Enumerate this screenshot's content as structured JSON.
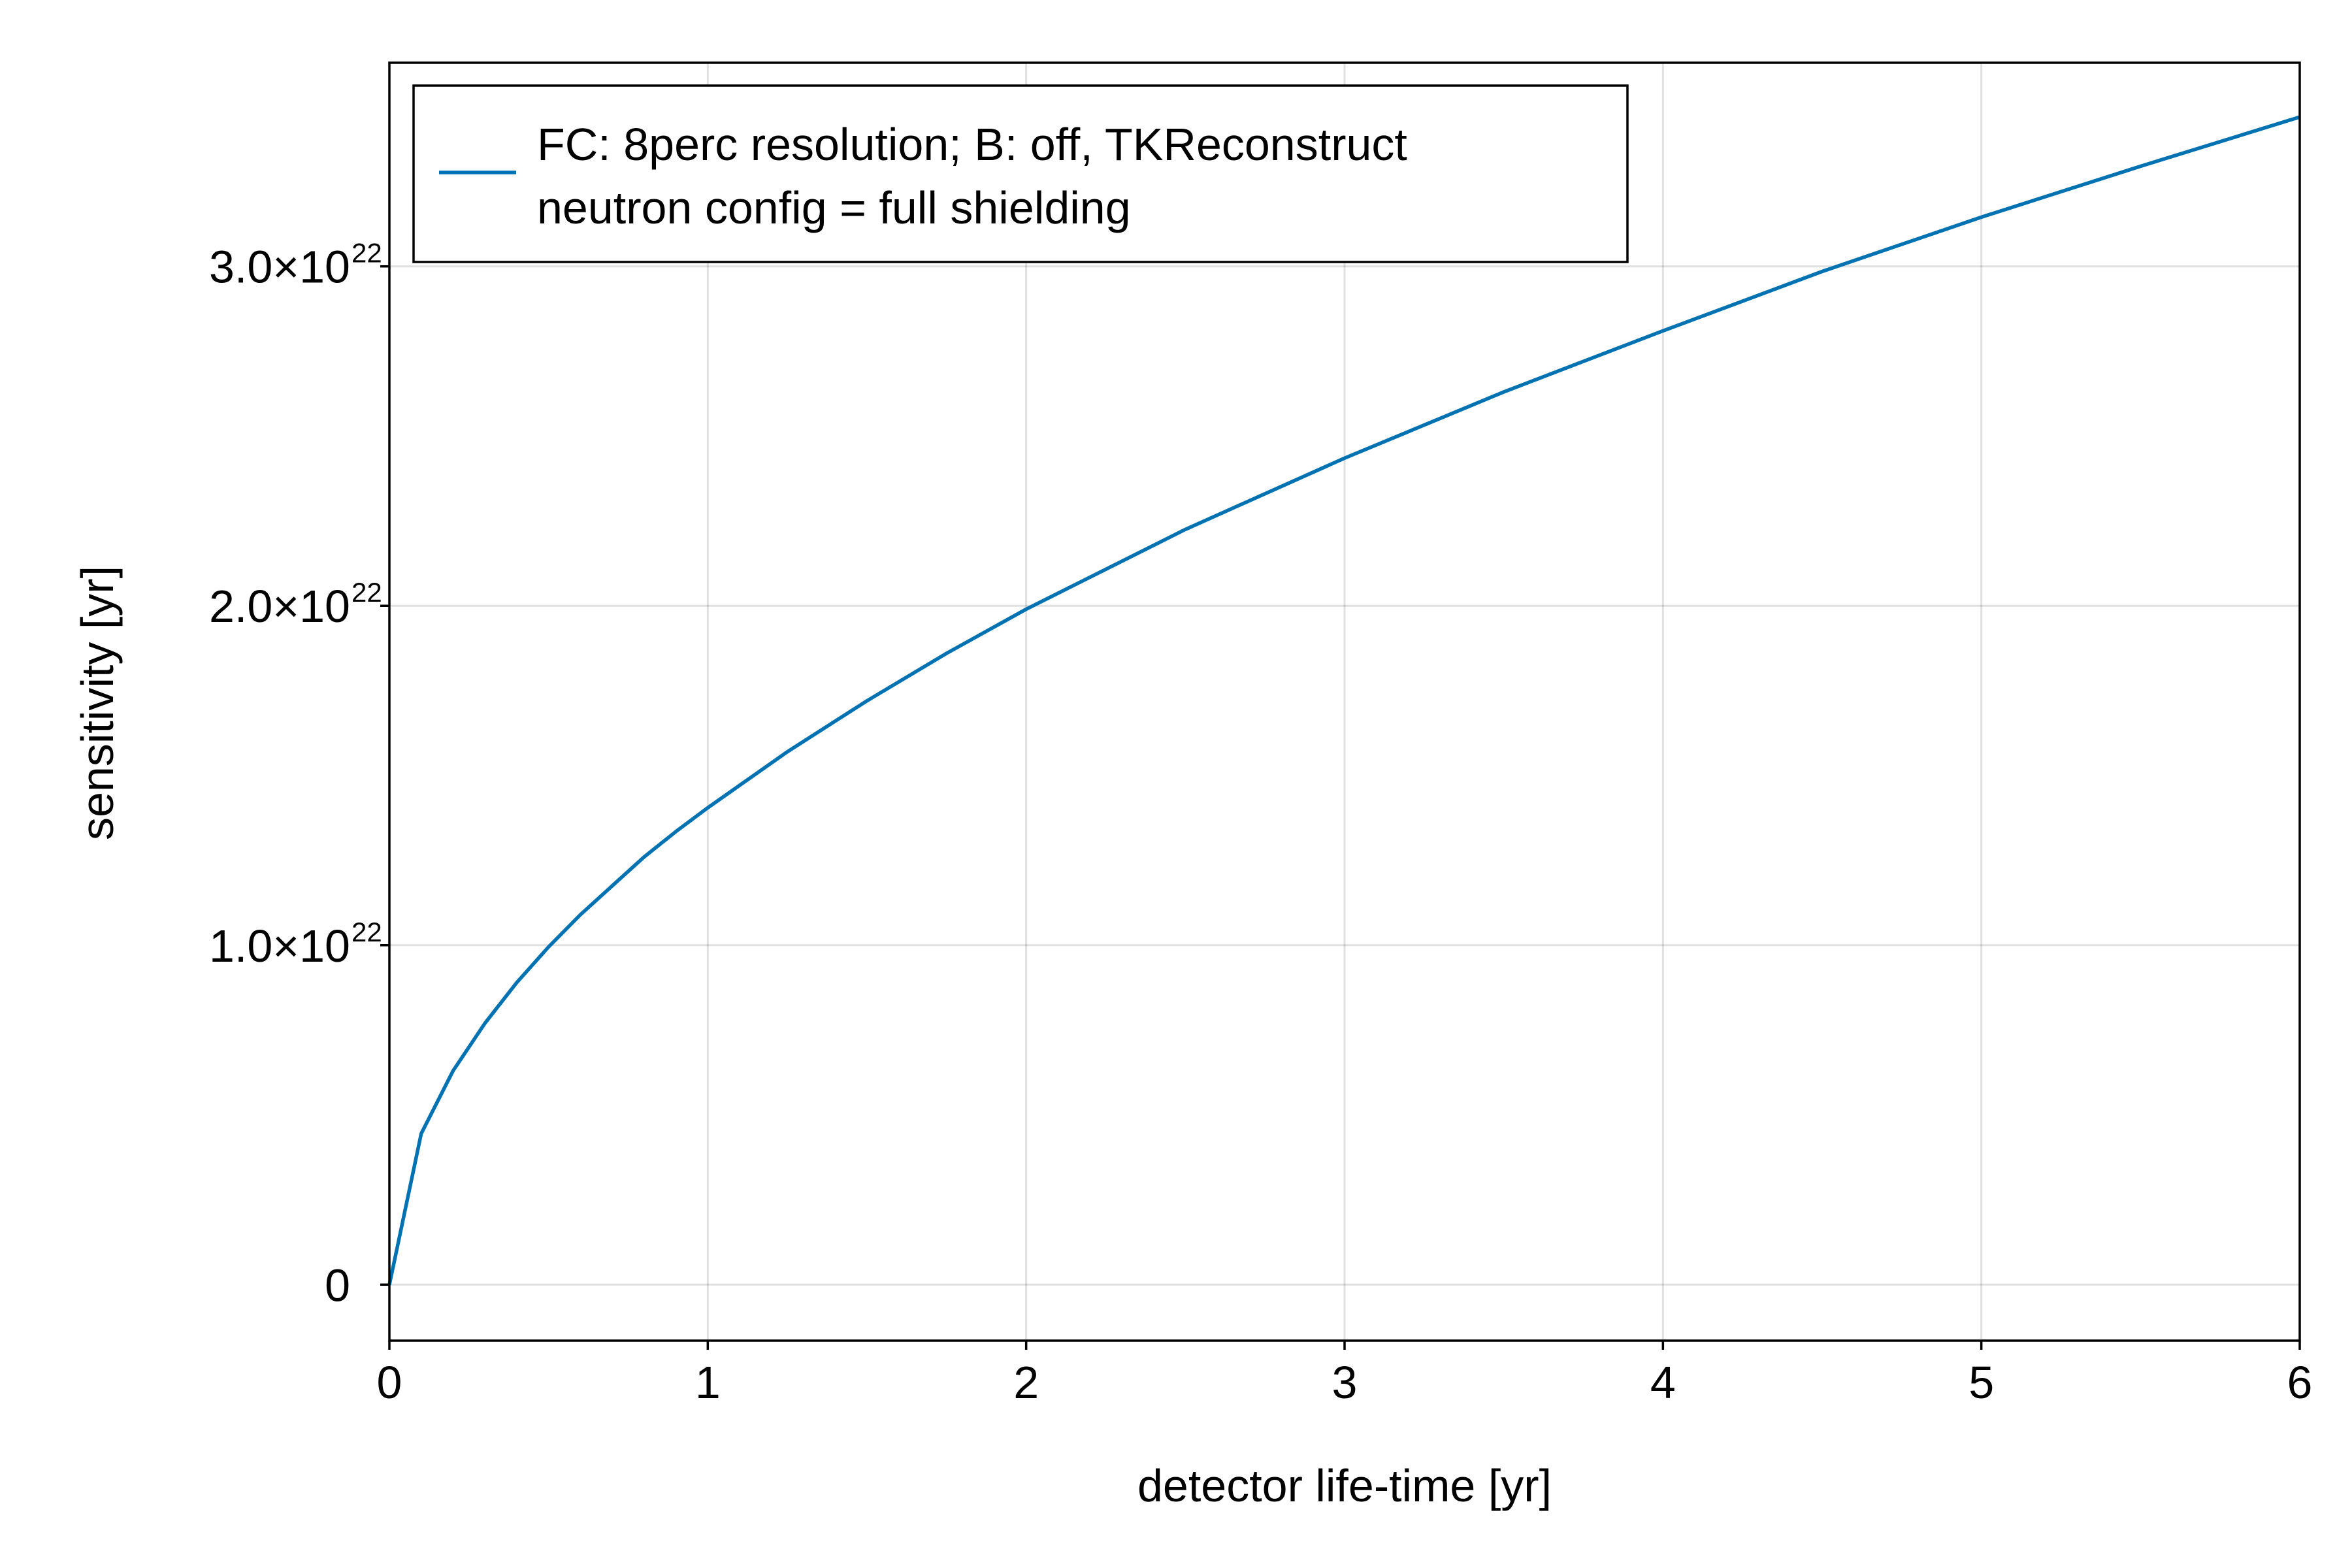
{
  "chart_data": {
    "type": "line",
    "xlabel": "detector life-time [yr]",
    "ylabel": "sensitivity [yr]",
    "xlim": [
      0,
      6
    ],
    "ylim": [
      -1.65e+21,
      3.6e+22
    ],
    "x_ticks": [
      0,
      1,
      2,
      3,
      4,
      5,
      6
    ],
    "x_tick_labels": [
      "0",
      "1",
      "2",
      "3",
      "4",
      "5",
      "6"
    ],
    "y_ticks": [
      0,
      1e+22,
      2e+22,
      3e+22
    ],
    "y_tick_labels": [
      {
        "mantissa": "0",
        "exponent": ""
      },
      {
        "mantissa": "1.0×10",
        "exponent": "22"
      },
      {
        "mantissa": "2.0×10",
        "exponent": "22"
      },
      {
        "mantissa": "3.0×10",
        "exponent": "22"
      }
    ],
    "grid": true,
    "legend_position": "top-left",
    "series": [
      {
        "name": "FC: 8perc resolution; B: off, TKReconstruct\nneutron config = full shielding",
        "color": "#0072b2",
        "x": [
          0,
          0.1,
          0.2,
          0.3,
          0.4,
          0.5,
          0.6,
          0.7,
          0.8,
          0.9,
          1.0,
          1.25,
          1.5,
          1.75,
          2.0,
          2.5,
          3.0,
          3.5,
          4.0,
          4.5,
          5.0,
          5.5,
          6.0
        ],
        "y": [
          0,
          4.45e+21,
          6.3e+21,
          7.7e+21,
          8.9e+21,
          9.95e+21,
          1.09e+22,
          1.175e+22,
          1.26e+22,
          1.335e+22,
          1.405e+22,
          1.57e+22,
          1.72e+22,
          1.86e+22,
          1.99e+22,
          2.225e+22,
          2.435e+22,
          2.63e+22,
          2.81e+22,
          2.985e+22,
          3.145e+22,
          3.295e+22,
          3.44e+22
        ]
      }
    ]
  }
}
